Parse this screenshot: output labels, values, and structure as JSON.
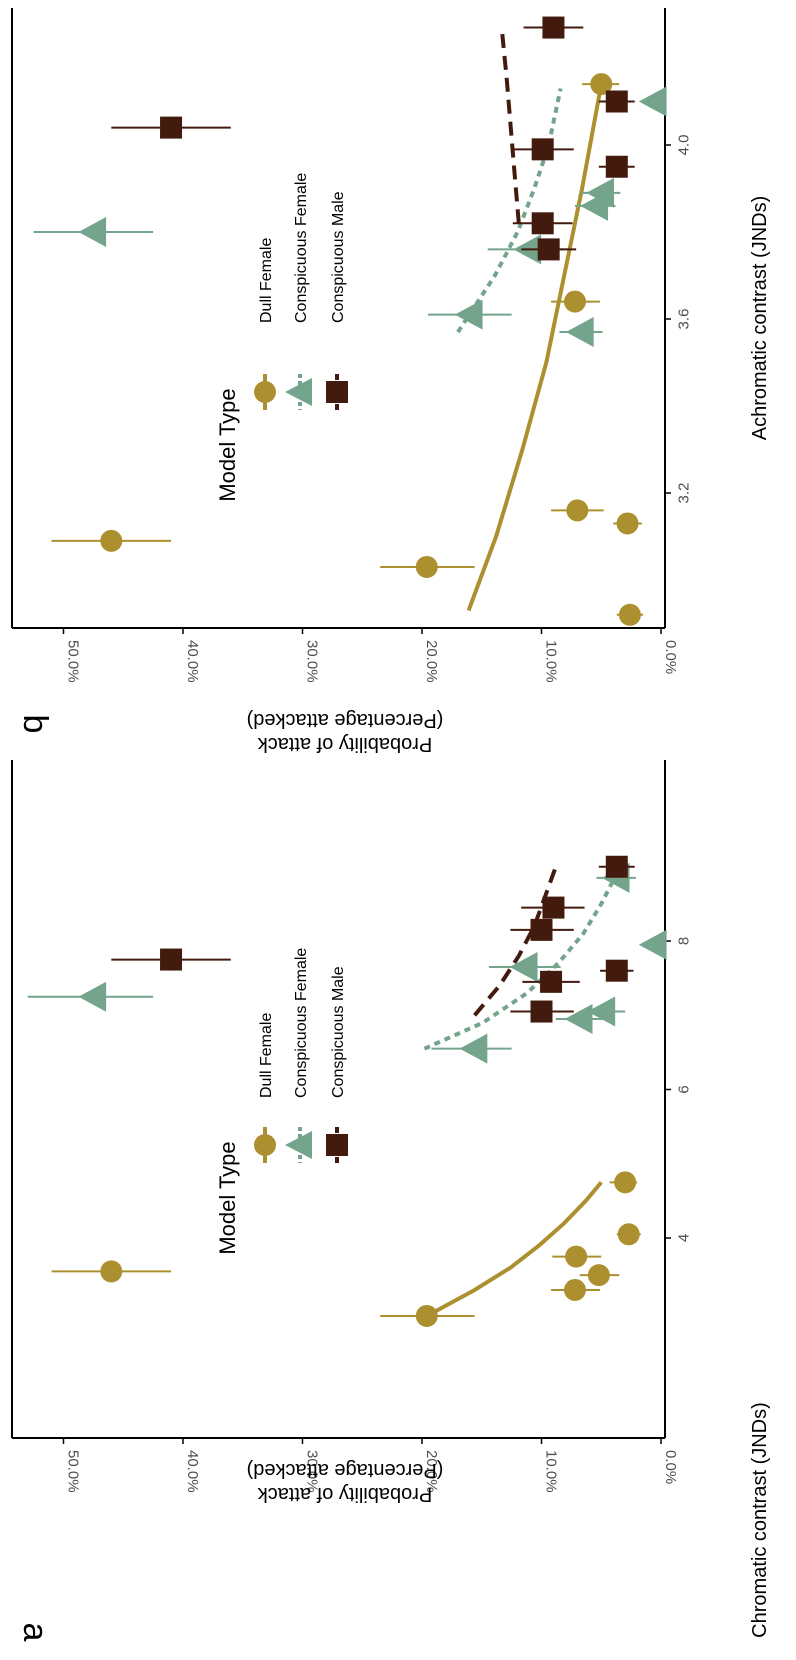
{
  "colors": {
    "dull_female": "#AC9030",
    "conspicuous_female": "#74A58C",
    "conspicuous_male": "#431A0E",
    "axis": "#000000",
    "tick_text": "#4d4d4d"
  },
  "legend": {
    "title": "Model Type",
    "items": [
      "Dull Female",
      "Conspicuous Female",
      "Conspicuous Male"
    ]
  },
  "chart_data": [
    {
      "panel": "a",
      "type": "scatter",
      "orientation": "rotated 90° clockwise",
      "xlabel": "Chromatic contrast (JNDs)",
      "ylabel_line1": "Probability of attack",
      "ylabel_line2": "(Percentage attacked)",
      "xlim": [
        2.6,
        9.3
      ],
      "ylim": [
        0,
        53
      ],
      "x_ticks": [
        4,
        6,
        8
      ],
      "x_tick_labels": [
        "4",
        "6",
        "8"
      ],
      "y_ticks": [
        0,
        10,
        20,
        30,
        40,
        50
      ],
      "y_tick_labels": [
        "0.0%",
        "10.0%",
        "20.0%",
        "30.0%",
        "40.0%",
        "50.0%"
      ],
      "grid": false,
      "legend_position": "upper-left",
      "series": [
        {
          "name": "Dull Female",
          "marker": "circle",
          "color_key": "dull_female",
          "points": [
            {
              "x": 2.95,
              "y": 19.6,
              "lo": 15.6,
              "hi": 23.5
            },
            {
              "x": 3.55,
              "y": 46.0,
              "lo": 41.0,
              "hi": 51.0
            },
            {
              "x": 3.3,
              "y": 7.2,
              "lo": 5.1,
              "hi": 9.2
            },
            {
              "x": 3.5,
              "y": 5.2,
              "lo": 3.5,
              "hi": 6.8
            },
            {
              "x": 3.75,
              "y": 7.1,
              "lo": 5.0,
              "hi": 9.1
            },
            {
              "x": 4.05,
              "y": 2.7,
              "lo": 1.7,
              "hi": 3.7
            },
            {
              "x": 4.75,
              "y": 3.0,
              "lo": 2.0,
              "hi": 4.3
            }
          ],
          "trend": {
            "style": "solid",
            "x": [
              2.95,
              3.3,
              3.6,
              3.9,
              4.2,
              4.5,
              4.75
            ],
            "y": [
              19.6,
              15.6,
              12.6,
              10.2,
              8.1,
              6.3,
              5.0
            ]
          }
        },
        {
          "name": "Conspicuous Female",
          "marker": "triangle",
          "color_key": "conspicuous_female",
          "points": [
            {
              "x": 6.55,
              "y": 15.6,
              "lo": 12.5,
              "hi": 19.2
            },
            {
              "x": 6.95,
              "y": 6.8,
              "lo": 4.8,
              "hi": 8.8
            },
            {
              "x": 7.05,
              "y": 4.9,
              "lo": 3.0,
              "hi": 6.8
            },
            {
              "x": 7.25,
              "y": 47.5,
              "lo": 42.5,
              "hi": 53.0
            },
            {
              "x": 7.65,
              "y": 11.4,
              "lo": 8.4,
              "hi": 14.4
            },
            {
              "x": 7.95,
              "y": 0.6,
              "lo": 0.3,
              "hi": 0.9
            },
            {
              "x": 8.85,
              "y": 3.7,
              "lo": 2.1,
              "hi": 5.4
            }
          ],
          "trend": {
            "style": "dotted",
            "x": [
              6.55,
              6.9,
              7.3,
              7.7,
              8.1,
              8.5,
              8.85
            ],
            "y": [
              19.8,
              14.9,
              11.2,
              8.6,
              6.5,
              5.0,
              3.9
            ]
          }
        },
        {
          "name": "Conspicuous Male",
          "marker": "square",
          "color_key": "conspicuous_male",
          "points": [
            {
              "x": 7.05,
              "y": 10.0,
              "lo": 7.3,
              "hi": 12.6
            },
            {
              "x": 7.45,
              "y": 9.2,
              "lo": 6.8,
              "hi": 11.6
            },
            {
              "x": 7.6,
              "y": 3.7,
              "lo": 2.3,
              "hi": 5.1
            },
            {
              "x": 7.75,
              "y": 41.0,
              "lo": 36.0,
              "hi": 46.0
            },
            {
              "x": 8.15,
              "y": 10.0,
              "lo": 7.3,
              "hi": 12.6
            },
            {
              "x": 8.45,
              "y": 9.0,
              "lo": 6.4,
              "hi": 11.7
            },
            {
              "x": 9.0,
              "y": 3.7,
              "lo": 2.2,
              "hi": 5.2
            }
          ],
          "trend": {
            "style": "dashed",
            "x": [
              7.0,
              7.4,
              7.8,
              8.2,
              8.6,
              9.0
            ],
            "y": [
              15.6,
              13.5,
              11.9,
              10.6,
              9.7,
              8.8
            ]
          }
        }
      ]
    },
    {
      "panel": "b",
      "type": "scatter",
      "orientation": "rotated 90° clockwise",
      "xlabel": "Achromatic contrast (JNDs)",
      "ylabel_line1": "Probability of attack",
      "ylabel_line2": "(Percentage attacked)",
      "xlim": [
        2.85,
        4.33
      ],
      "ylim": [
        0,
        53
      ],
      "x_ticks": [
        3.2,
        3.6,
        4.0
      ],
      "x_tick_labels": [
        "3.2",
        "3.6",
        "4.0"
      ],
      "y_ticks": [
        0,
        10,
        20,
        30,
        40,
        50
      ],
      "y_tick_labels": [
        "0.0%",
        "10.0%",
        "20.0%",
        "30.0%",
        "40.0%",
        "50.0%"
      ],
      "grid": false,
      "legend_position": "upper-left",
      "series": [
        {
          "name": "Dull Female",
          "marker": "circle",
          "color_key": "dull_female",
          "points": [
            {
              "x": 2.92,
              "y": 2.6,
              "lo": 1.5,
              "hi": 3.7
            },
            {
              "x": 3.03,
              "y": 19.6,
              "lo": 15.6,
              "hi": 23.5
            },
            {
              "x": 3.09,
              "y": 46.0,
              "lo": 41.0,
              "hi": 51.0
            },
            {
              "x": 3.13,
              "y": 2.8,
              "lo": 1.6,
              "hi": 4.0
            },
            {
              "x": 3.16,
              "y": 7.0,
              "lo": 4.8,
              "hi": 9.2
            },
            {
              "x": 3.64,
              "y": 7.2,
              "lo": 5.1,
              "hi": 9.2
            },
            {
              "x": 4.14,
              "y": 5.0,
              "lo": 3.5,
              "hi": 6.6
            }
          ],
          "trend": {
            "style": "solid",
            "x": [
              2.93,
              3.1,
              3.3,
              3.5,
              3.7,
              3.9,
              4.14
            ],
            "y": [
              16.1,
              13.8,
              11.6,
              9.6,
              8.1,
              6.6,
              5.0
            ]
          }
        },
        {
          "name": "Conspicuous Female",
          "marker": "triangle",
          "color_key": "conspicuous_female",
          "points": [
            {
              "x": 3.57,
              "y": 6.7,
              "lo": 4.9,
              "hi": 8.5
            },
            {
              "x": 3.61,
              "y": 16.0,
              "lo": 12.5,
              "hi": 19.5
            },
            {
              "x": 3.76,
              "y": 11.1,
              "lo": 7.8,
              "hi": 14.5
            },
            {
              "x": 3.8,
              "y": 47.5,
              "lo": 42.5,
              "hi": 52.5
            },
            {
              "x": 3.86,
              "y": 5.5,
              "lo": 3.8,
              "hi": 7.2
            },
            {
              "x": 3.89,
              "y": 5.0,
              "lo": 3.4,
              "hi": 6.7
            },
            {
              "x": 4.1,
              "y": 0.6,
              "lo": 0.3,
              "hi": 0.9
            }
          ],
          "trend": {
            "style": "dotted",
            "x": [
              3.57,
              3.7,
              3.8,
              3.9,
              4.0,
              4.13
            ],
            "y": [
              17.0,
              13.9,
              12.0,
              10.6,
              9.4,
              8.4
            ]
          }
        },
        {
          "name": "Conspicuous Male",
          "marker": "square",
          "color_key": "conspicuous_male",
          "points": [
            {
              "x": 3.76,
              "y": 9.4,
              "lo": 7.1,
              "hi": 11.7
            },
            {
              "x": 3.82,
              "y": 9.9,
              "lo": 7.4,
              "hi": 12.4
            },
            {
              "x": 3.95,
              "y": 3.7,
              "lo": 2.2,
              "hi": 5.2
            },
            {
              "x": 3.99,
              "y": 9.9,
              "lo": 7.3,
              "hi": 12.5
            },
            {
              "x": 4.04,
              "y": 41.0,
              "lo": 36.0,
              "hi": 46.0
            },
            {
              "x": 4.1,
              "y": 3.7,
              "lo": 2.2,
              "hi": 5.2
            },
            {
              "x": 4.27,
              "y": 9.0,
              "lo": 6.5,
              "hi": 11.5
            }
          ],
          "trend": {
            "style": "dashed",
            "x": [
              3.82,
              3.95,
              4.05,
              4.15,
              4.26
            ],
            "y": [
              11.9,
              12.3,
              12.6,
              12.9,
              13.3
            ]
          }
        }
      ]
    }
  ]
}
